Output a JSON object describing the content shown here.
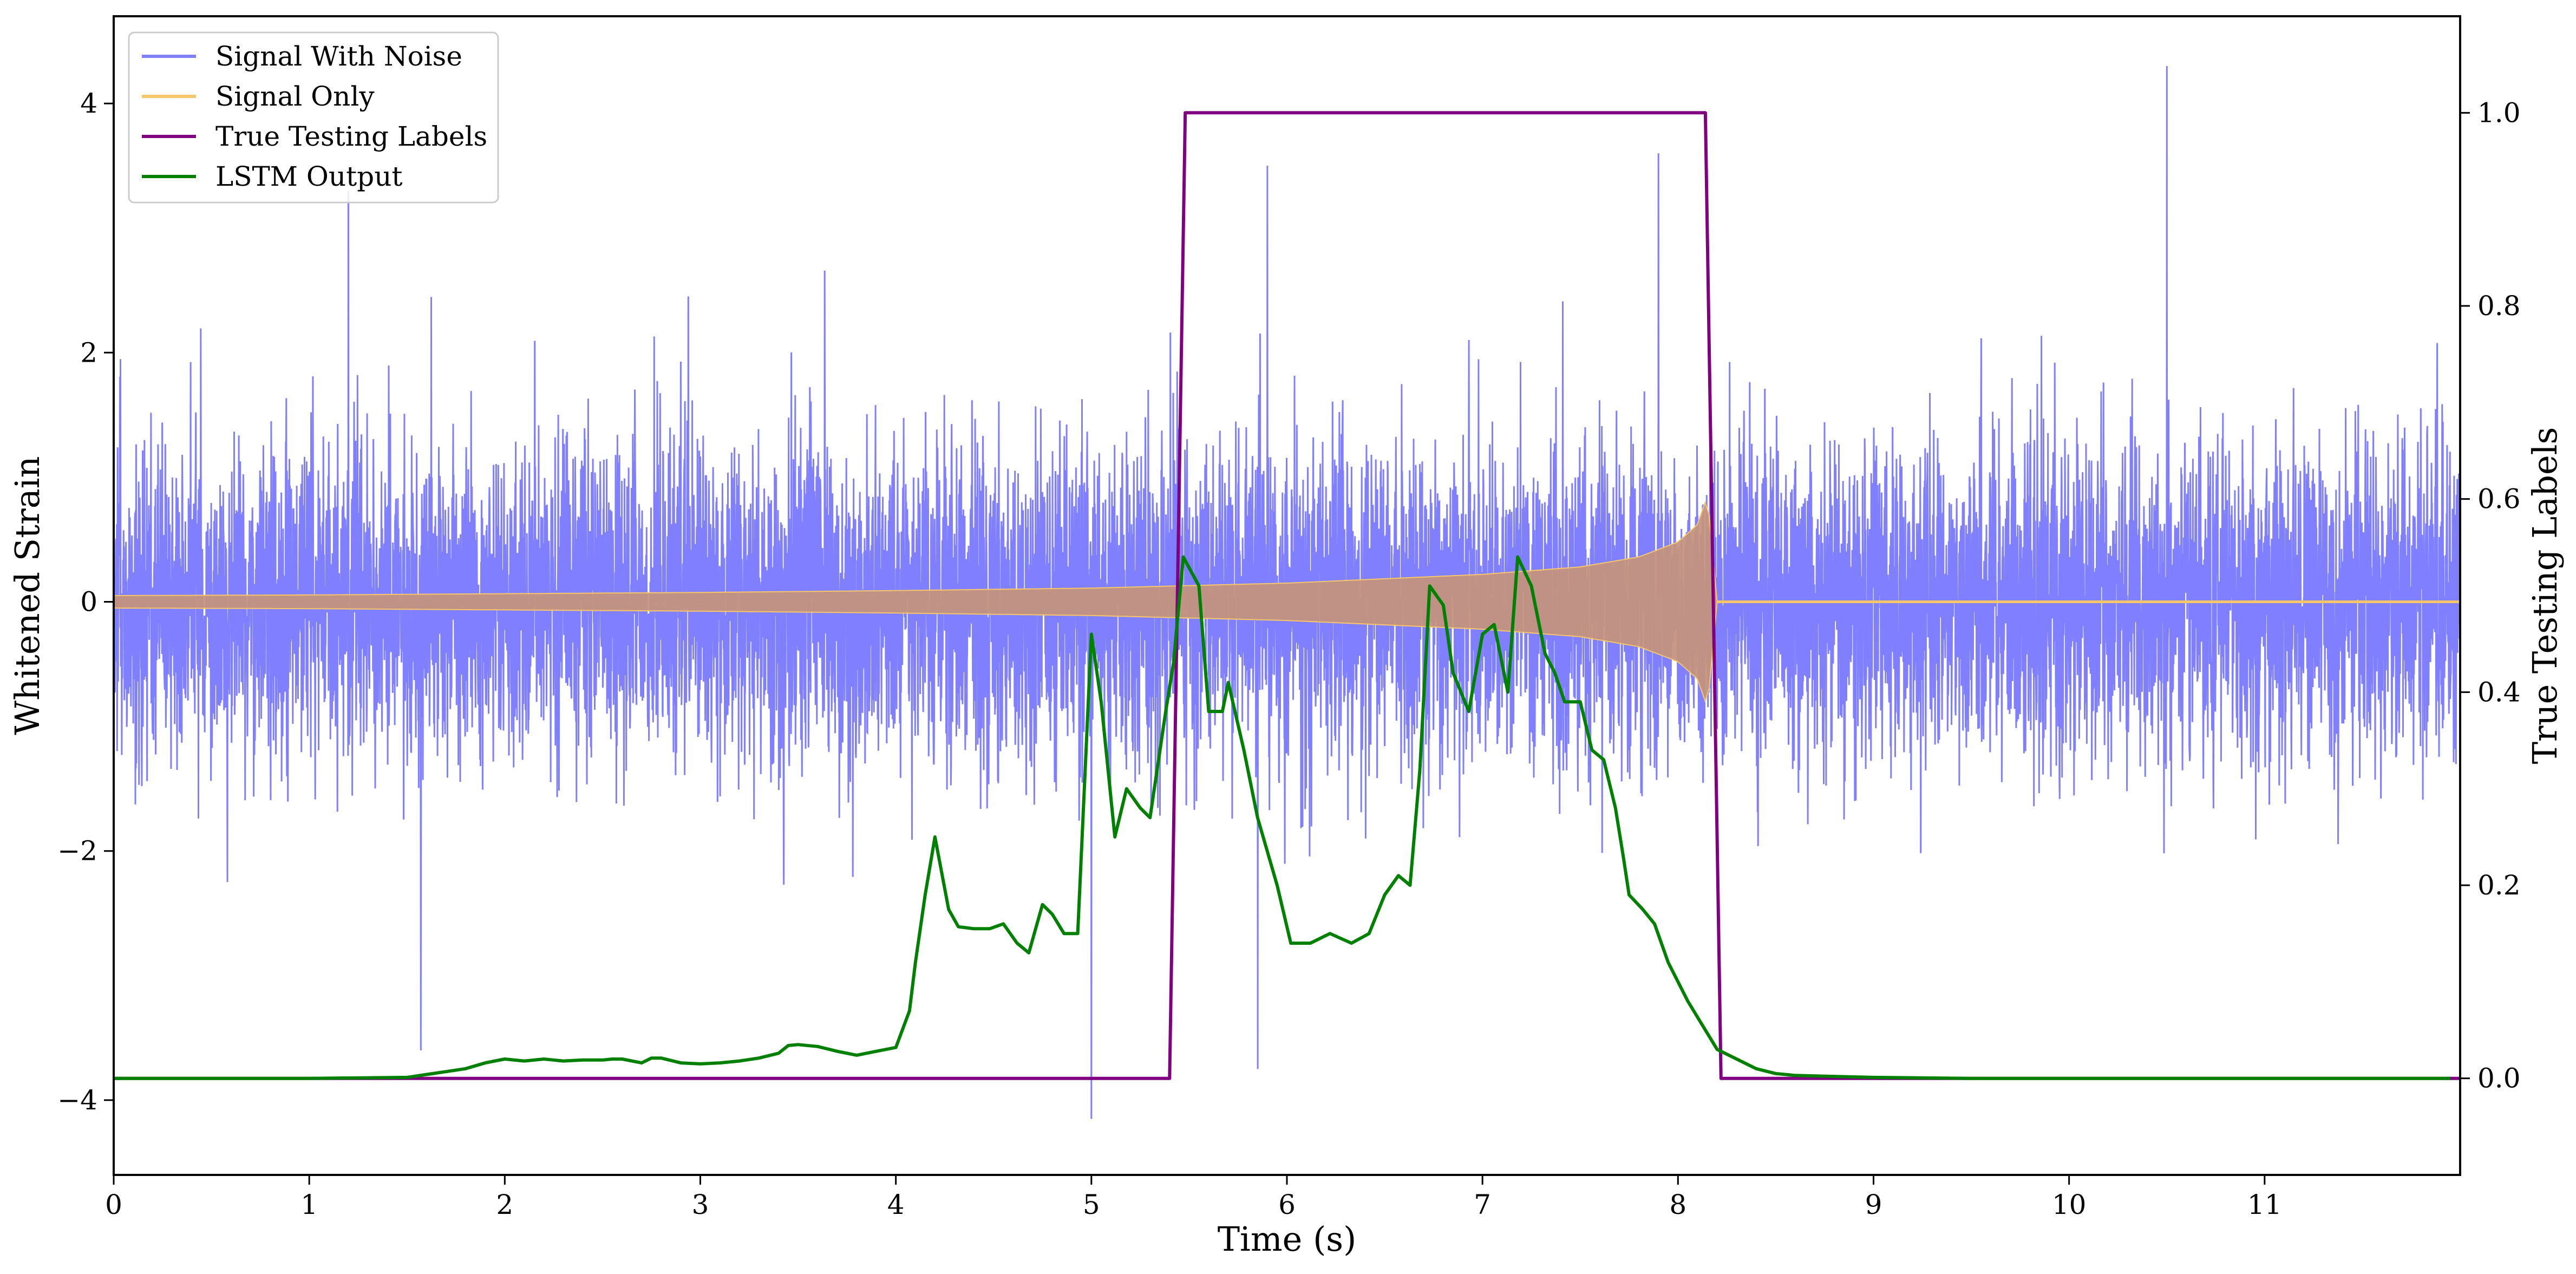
{
  "chart_data": {
    "type": "line",
    "xlabel": "Time (s)",
    "ylabel": "Whitened Strain",
    "y2label": "True Testing Labels",
    "xlim": [
      0,
      12
    ],
    "ylim": [
      -4.6,
      4.7
    ],
    "y2lim": [
      -0.1,
      1.1
    ],
    "x_ticks": [
      0,
      1,
      2,
      3,
      4,
      5,
      6,
      7,
      8,
      9,
      10,
      11
    ],
    "y_ticks": [
      -4,
      -2,
      0,
      2,
      4
    ],
    "y2_ticks": [
      0.0,
      0.2,
      0.4,
      0.6,
      0.8,
      1.0
    ],
    "y_tick_labels": [
      "−4",
      "−2",
      "0",
      "2",
      "4"
    ],
    "y2_tick_labels": [
      "0.0",
      "0.2",
      "0.4",
      "0.6",
      "0.8",
      "1.0"
    ],
    "grid": false,
    "legend_position": "top-left",
    "series": [
      {
        "name": "Signal With Noise",
        "axis": "left",
        "color": "#7f7fff",
        "kind": "noise",
        "sigma": 0.65,
        "x_range": [
          0,
          12
        ],
        "notable_peaks": [
          [
            1.2,
            3.3
          ],
          [
            5.9,
            3.5
          ],
          [
            7.9,
            3.6
          ],
          [
            10.5,
            4.3
          ],
          [
            5.0,
            -4.15
          ],
          [
            1.57,
            -3.6
          ],
          [
            5.85,
            -3.75
          ]
        ]
      },
      {
        "name": "Signal Only",
        "axis": "left",
        "color": "#f7c66a",
        "fill_color": "#c49480",
        "kind": "chirp_envelope",
        "envelope": [
          [
            0,
            0.05
          ],
          [
            1,
            0.055
          ],
          [
            2,
            0.065
          ],
          [
            3,
            0.075
          ],
          [
            4,
            0.09
          ],
          [
            5,
            0.11
          ],
          [
            6,
            0.15
          ],
          [
            7,
            0.22
          ],
          [
            7.5,
            0.28
          ],
          [
            7.8,
            0.36
          ],
          [
            8.0,
            0.48
          ],
          [
            8.1,
            0.62
          ],
          [
            8.15,
            0.85
          ],
          [
            8.2,
            0.0
          ]
        ],
        "x_end": 8.2
      },
      {
        "name": "True Testing Labels",
        "axis": "right",
        "color": "#800080",
        "x": [
          0,
          5.4,
          5.48,
          8.14,
          8.22,
          12
        ],
        "y": [
          0,
          0,
          1,
          1,
          0,
          0
        ]
      },
      {
        "name": "LSTM Output",
        "axis": "right",
        "color": "#008000",
        "x": [
          0,
          1.0,
          1.5,
          1.6,
          1.7,
          1.8,
          1.9,
          2.0,
          2.1,
          2.2,
          2.3,
          2.4,
          2.5,
          2.55,
          2.6,
          2.7,
          2.75,
          2.8,
          2.9,
          3.0,
          3.1,
          3.2,
          3.3,
          3.4,
          3.45,
          3.5,
          3.6,
          3.7,
          3.8,
          3.9,
          4.0,
          4.07,
          4.1,
          4.15,
          4.2,
          4.27,
          4.32,
          4.4,
          4.48,
          4.55,
          4.62,
          4.68,
          4.75,
          4.8,
          4.86,
          4.93,
          5.0,
          5.05,
          5.12,
          5.18,
          5.25,
          5.3,
          5.38,
          5.42,
          5.47,
          5.55,
          5.6,
          5.67,
          5.7,
          5.78,
          5.85,
          5.95,
          6.02,
          6.12,
          6.22,
          6.33,
          6.42,
          6.5,
          6.57,
          6.63,
          6.68,
          6.73,
          6.8,
          6.85,
          6.93,
          7.0,
          7.06,
          7.13,
          7.18,
          7.25,
          7.32,
          7.37,
          7.42,
          7.47,
          7.5,
          7.56,
          7.62,
          7.68,
          7.72,
          7.75,
          7.82,
          7.88,
          7.95,
          8.05,
          8.2,
          8.3,
          8.4,
          8.5,
          8.6,
          8.8,
          9.0,
          9.5,
          10,
          11,
          11.95
        ],
        "y": [
          0,
          0,
          0.001,
          0.004,
          0.007,
          0.01,
          0.016,
          0.02,
          0.018,
          0.02,
          0.018,
          0.019,
          0.019,
          0.02,
          0.02,
          0.016,
          0.021,
          0.021,
          0.016,
          0.015,
          0.016,
          0.018,
          0.021,
          0.026,
          0.034,
          0.035,
          0.033,
          0.028,
          0.024,
          0.028,
          0.032,
          0.07,
          0.12,
          0.19,
          0.25,
          0.175,
          0.157,
          0.155,
          0.155,
          0.16,
          0.14,
          0.13,
          0.18,
          0.17,
          0.15,
          0.15,
          0.46,
          0.39,
          0.25,
          0.3,
          0.28,
          0.27,
          0.38,
          0.43,
          0.54,
          0.51,
          0.38,
          0.38,
          0.41,
          0.34,
          0.27,
          0.2,
          0.14,
          0.14,
          0.15,
          0.14,
          0.15,
          0.19,
          0.21,
          0.2,
          0.32,
          0.51,
          0.49,
          0.42,
          0.38,
          0.46,
          0.47,
          0.4,
          0.54,
          0.51,
          0.44,
          0.42,
          0.39,
          0.39,
          0.39,
          0.34,
          0.33,
          0.28,
          0.23,
          0.19,
          0.175,
          0.16,
          0.12,
          0.08,
          0.03,
          0.02,
          0.01,
          0.005,
          0.003,
          0.002,
          0.001,
          0,
          0,
          0,
          0
        ]
      }
    ]
  }
}
